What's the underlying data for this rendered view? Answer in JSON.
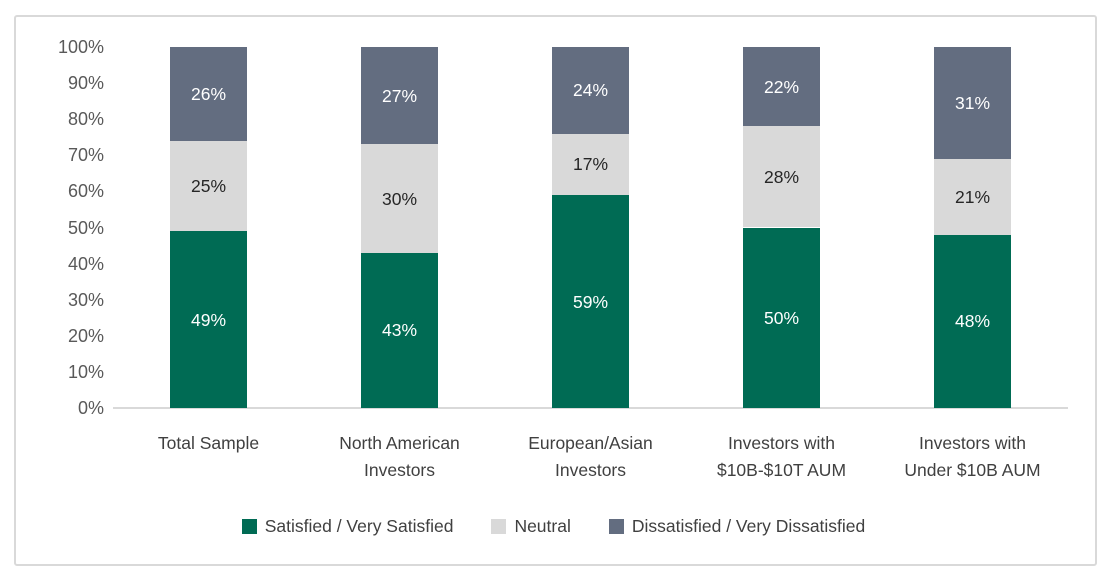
{
  "chart_data": {
    "type": "bar",
    "stacked": true,
    "orientation": "vertical",
    "title": "",
    "xlabel": "",
    "ylabel": "",
    "categories": [
      "Total Sample",
      "North American Investors",
      "European/Asian Investors",
      "Investors with $10B-$10T AUM",
      "Investors with Under $10B AUM"
    ],
    "category_label_lines": [
      [
        "Total Sample"
      ],
      [
        "North American",
        "Investors"
      ],
      [
        "European/Asian",
        "Investors"
      ],
      [
        "Investors with",
        "$10B-$10T AUM"
      ],
      [
        "Investors with",
        "Under $10B AUM"
      ]
    ],
    "series": [
      {
        "name": "Satisfied / Very Satisfied",
        "color": "#006B54",
        "label_color": "#FFFFFF",
        "values": [
          49,
          43,
          59,
          50,
          48
        ]
      },
      {
        "name": "Neutral",
        "color": "#D9D9D9",
        "label_color": "#262626",
        "values": [
          25,
          30,
          17,
          28,
          21
        ]
      },
      {
        "name": "Dissatisfied / Very Dissatisfied",
        "color": "#636D80",
        "label_color": "#FFFFFF",
        "values": [
          26,
          27,
          24,
          22,
          31
        ]
      }
    ],
    "value_suffix": "%",
    "data_labels_visible": true,
    "y_axis": {
      "min": 0,
      "max": 100,
      "step": 10,
      "tick_suffix": "%",
      "tick_labels": [
        "0%",
        "10%",
        "20%",
        "30%",
        "40%",
        "50%",
        "60%",
        "70%",
        "80%",
        "90%",
        "100%"
      ]
    },
    "grid": false,
    "legend_position": "bottom"
  },
  "colors": {
    "background": "#FFFFFF",
    "frame_border": "#D9D9D9",
    "axis_line": "#D9D9D9",
    "tick_text": "#595959",
    "category_text": "#404040",
    "legend_text": "#404040"
  }
}
